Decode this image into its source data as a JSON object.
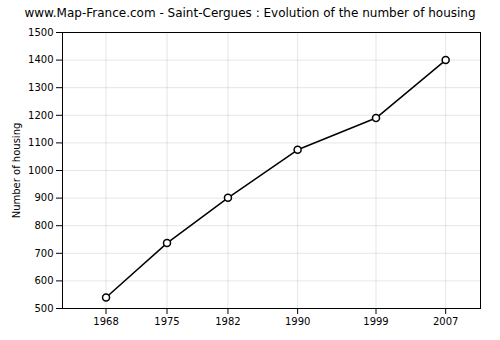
{
  "chart_data": {
    "type": "line",
    "title": "www.Map-France.com - Saint-Cergues : Evolution of the number of housing",
    "ylabel": "Number of housing",
    "x": [
      1968,
      1975,
      1982,
      1990,
      1999,
      2007
    ],
    "values": [
      540,
      737,
      901,
      1075,
      1190,
      1400
    ],
    "xlim": [
      1963,
      2011
    ],
    "ylim": [
      500,
      1500
    ],
    "xticks": [
      1968,
      1975,
      1982,
      1990,
      1999,
      2007
    ],
    "yticks": [
      500,
      600,
      700,
      800,
      900,
      1000,
      1100,
      1200,
      1300,
      1400,
      1500
    ],
    "grid": true,
    "marker": "circle"
  }
}
